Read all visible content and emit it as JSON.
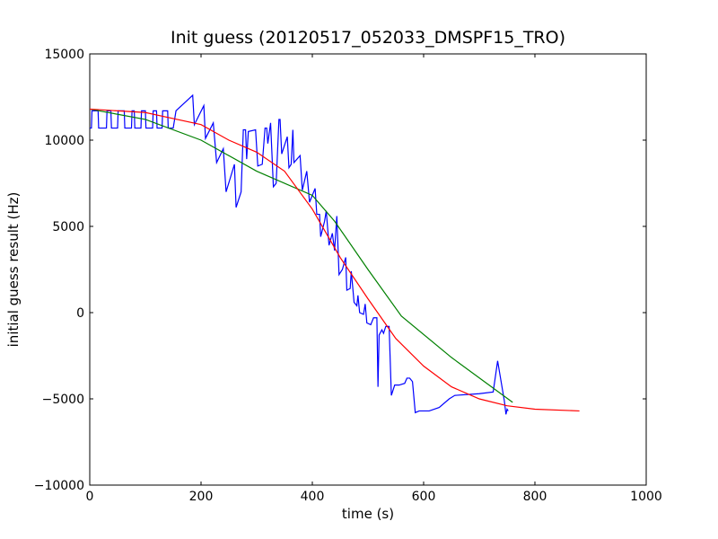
{
  "chart_data": {
    "type": "line",
    "title": "Init guess (20120517_052033_DMSPF15_TRO)",
    "xlabel": "time (s)",
    "ylabel": "initial guess result (Hz)",
    "xlim": [
      0,
      1000
    ],
    "ylim": [
      -10000,
      15000
    ],
    "x_ticks": [
      0,
      200,
      400,
      600,
      800,
      1000
    ],
    "y_ticks": [
      -10000,
      -5000,
      0,
      5000,
      10000,
      15000
    ],
    "x_tick_labels": [
      "0",
      "200",
      "400",
      "600",
      "800",
      "1000"
    ],
    "y_tick_labels": [
      "−10000",
      "−5000",
      "0",
      "5000",
      "10000",
      "15000"
    ],
    "grid": false,
    "series": [
      {
        "color": "#0000ff",
        "points": [
          [
            0,
            10700
          ],
          [
            3,
            10700
          ],
          [
            4,
            11700
          ],
          [
            15,
            11700
          ],
          [
            16,
            10700
          ],
          [
            30,
            10700
          ],
          [
            31,
            11700
          ],
          [
            38,
            11700
          ],
          [
            39,
            10700
          ],
          [
            50,
            10700
          ],
          [
            51,
            11700
          ],
          [
            62,
            11700
          ],
          [
            63,
            10700
          ],
          [
            75,
            10700
          ],
          [
            76,
            11700
          ],
          [
            80,
            11700
          ],
          [
            81,
            10700
          ],
          [
            92,
            10700
          ],
          [
            93,
            11700
          ],
          [
            100,
            11700
          ],
          [
            101,
            10700
          ],
          [
            113,
            10700
          ],
          [
            114,
            11700
          ],
          [
            120,
            11700
          ],
          [
            121,
            10700
          ],
          [
            130,
            10700
          ],
          [
            131,
            11700
          ],
          [
            140,
            11700
          ],
          [
            141,
            10700
          ],
          [
            150,
            10700
          ],
          [
            155,
            11700
          ],
          [
            185,
            12600
          ],
          [
            188,
            10900
          ],
          [
            205,
            12000
          ],
          [
            208,
            10100
          ],
          [
            222,
            11000
          ],
          [
            228,
            8700
          ],
          [
            240,
            9500
          ],
          [
            245,
            7000
          ],
          [
            260,
            8600
          ],
          [
            263,
            6100
          ],
          [
            272,
            7000
          ],
          [
            276,
            10600
          ],
          [
            280,
            10600
          ],
          [
            282,
            8900
          ],
          [
            285,
            10500
          ],
          [
            298,
            10600
          ],
          [
            302,
            8500
          ],
          [
            310,
            8600
          ],
          [
            315,
            10700
          ],
          [
            318,
            10700
          ],
          [
            320,
            9800
          ],
          [
            325,
            11000
          ],
          [
            330,
            7300
          ],
          [
            335,
            7500
          ],
          [
            340,
            11200
          ],
          [
            342,
            11200
          ],
          [
            345,
            9200
          ],
          [
            355,
            10200
          ],
          [
            358,
            8400
          ],
          [
            362,
            8600
          ],
          [
            365,
            10600
          ],
          [
            367,
            8700
          ],
          [
            378,
            9100
          ],
          [
            382,
            7100
          ],
          [
            390,
            8200
          ],
          [
            395,
            6400
          ],
          [
            405,
            7200
          ],
          [
            408,
            5700
          ],
          [
            413,
            5700
          ],
          [
            415,
            4400
          ],
          [
            422,
            5300
          ],
          [
            425,
            5900
          ],
          [
            430,
            3900
          ],
          [
            436,
            4600
          ],
          [
            440,
            3600
          ],
          [
            444,
            5600
          ],
          [
            448,
            2200
          ],
          [
            454,
            2500
          ],
          [
            460,
            3200
          ],
          [
            462,
            1300
          ],
          [
            468,
            1400
          ],
          [
            470,
            2400
          ],
          [
            475,
            600
          ],
          [
            480,
            400
          ],
          [
            482,
            1000
          ],
          [
            485,
            0
          ],
          [
            492,
            -100
          ],
          [
            495,
            500
          ],
          [
            498,
            -600
          ],
          [
            505,
            -700
          ],
          [
            510,
            -300
          ],
          [
            516,
            -300
          ],
          [
            518,
            -4300
          ],
          [
            520,
            -1300
          ],
          [
            525,
            -1000
          ],
          [
            528,
            -1200
          ],
          [
            532,
            -800
          ],
          [
            538,
            -800
          ],
          [
            542,
            -4800
          ],
          [
            548,
            -4200
          ],
          [
            556,
            -4200
          ],
          [
            566,
            -4100
          ],
          [
            570,
            -3800
          ],
          [
            575,
            -3800
          ],
          [
            580,
            -4000
          ],
          [
            585,
            -5800
          ],
          [
            592,
            -5700
          ],
          [
            610,
            -5700
          ],
          [
            628,
            -5500
          ],
          [
            646,
            -5000
          ],
          [
            656,
            -4800
          ],
          [
            700,
            -4700
          ],
          [
            725,
            -4600
          ],
          [
            733,
            -2800
          ],
          [
            745,
            -5100
          ],
          [
            748,
            -5900
          ],
          [
            750,
            -5600
          ],
          [
            752,
            -5700
          ]
        ]
      },
      {
        "color": "#008000",
        "points": [
          [
            0,
            11800
          ],
          [
            100,
            11200
          ],
          [
            200,
            10000
          ],
          [
            300,
            8200
          ],
          [
            400,
            6800
          ],
          [
            440,
            5300
          ],
          [
            500,
            2500
          ],
          [
            560,
            -200
          ],
          [
            650,
            -2600
          ],
          [
            760,
            -5200
          ]
        ]
      },
      {
        "color": "#ff0000",
        "points": [
          [
            0,
            11800
          ],
          [
            100,
            11600
          ],
          [
            200,
            10900
          ],
          [
            250,
            10000
          ],
          [
            300,
            9300
          ],
          [
            350,
            8200
          ],
          [
            400,
            6000
          ],
          [
            450,
            3200
          ],
          [
            500,
            800
          ],
          [
            550,
            -1500
          ],
          [
            600,
            -3100
          ],
          [
            650,
            -4300
          ],
          [
            700,
            -5000
          ],
          [
            750,
            -5400
          ],
          [
            800,
            -5600
          ],
          [
            880,
            -5700
          ]
        ]
      }
    ]
  }
}
